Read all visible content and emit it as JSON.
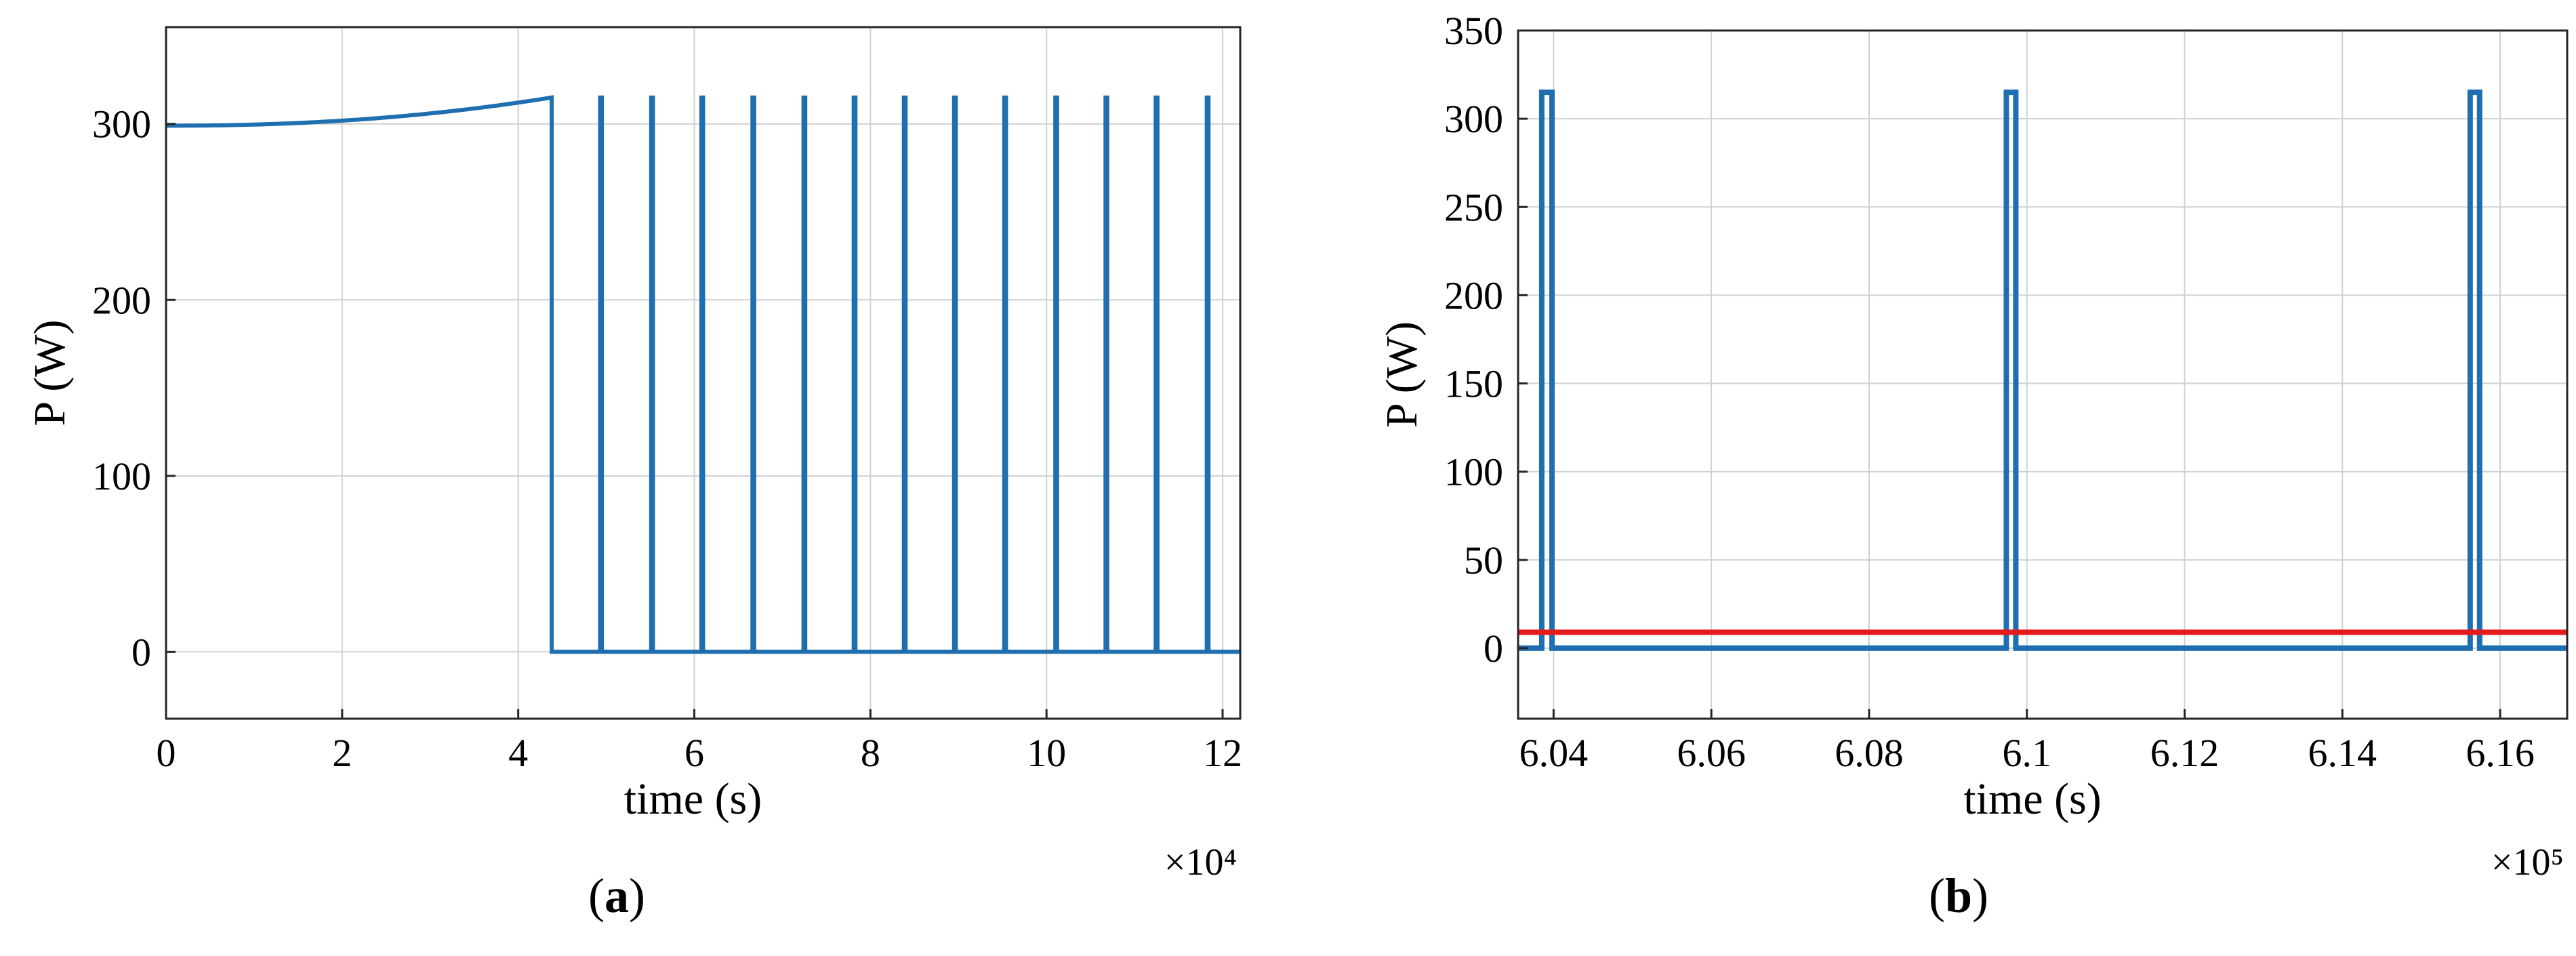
{
  "colors": {
    "series_blue": "#1f6fb0",
    "threshold_red": "#e41b1b",
    "grid": "#d0d0d0",
    "axes": "#262626"
  },
  "captions": {
    "a_open": "(",
    "a_letter": "a",
    "a_close": ")",
    "b_open": "(",
    "b_letter": "b",
    "b_close": ")"
  },
  "chart_data": [
    {
      "id": "a",
      "type": "line",
      "xlabel": "time (s)",
      "ylabel": "P (W)",
      "x_exponent_label": "×10⁴",
      "x_scale": 10000,
      "xlim": [
        0,
        12.2
      ],
      "ylim": [
        -38,
        355
      ],
      "xticks": [
        0,
        2,
        4,
        6,
        8,
        10,
        12
      ],
      "yticks": [
        0,
        100,
        200,
        300
      ],
      "grid": true,
      "series": [
        {
          "color": "#1f6fb0",
          "curve": {
            "x_start": 0,
            "x_end": 4.38,
            "y_start": 299,
            "y_end": 315
          },
          "drop_to": 0,
          "off_level": 0,
          "on_level": 315,
          "pulse_starts": [
            4.93,
            5.51,
            6.08,
            6.66,
            7.24,
            7.81,
            8.38,
            8.95,
            9.52,
            10.1,
            10.67,
            11.24,
            11.82
          ],
          "pulse_width": 0.02,
          "x_end": 12.2
        }
      ]
    },
    {
      "id": "b",
      "type": "line",
      "xlabel": "time (s)",
      "ylabel": "P (W)",
      "x_exponent_label": "×10⁵",
      "x_scale": 100000,
      "xlim": [
        6.0355,
        6.1685
      ],
      "ylim": [
        -40,
        350
      ],
      "xticks": [
        6.04,
        6.06,
        6.08,
        6.1,
        6.12,
        6.14,
        6.16
      ],
      "xtick_labels": [
        "6.04",
        "6.06",
        "6.08",
        "6.1",
        "6.12",
        "6.14",
        "6.16"
      ],
      "yticks": [
        0,
        50,
        100,
        150,
        200,
        250,
        300,
        350
      ],
      "grid": true,
      "series": [
        {
          "color": "#1f6fb0",
          "off_level": 0,
          "on_level": 315,
          "pulses": [
            [
              6.0385,
              6.0398
            ],
            [
              6.0974,
              6.0986
            ],
            [
              6.1562,
              6.1574
            ]
          ],
          "x_start": 6.0355,
          "x_end": 6.1685
        },
        {
          "color": "#e41b1b",
          "constant": 9
        }
      ]
    }
  ]
}
